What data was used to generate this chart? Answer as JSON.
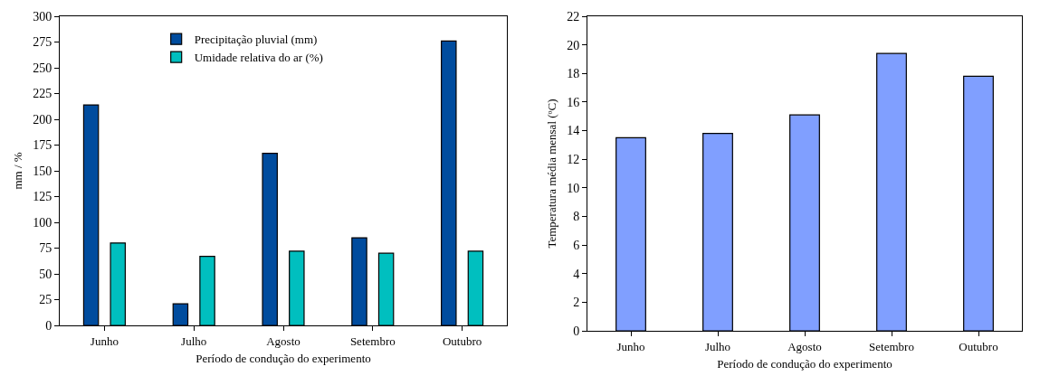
{
  "chart_data": [
    {
      "type": "bar",
      "categories": [
        "Junho",
        "Julho",
        "Agosto",
        "Setembro",
        "Outubro"
      ],
      "xlabel": "Período de condução do experimento",
      "ylabel": "mm / %",
      "ylim": [
        0,
        300
      ],
      "yticks": [
        0,
        25,
        50,
        75,
        100,
        125,
        150,
        175,
        200,
        225,
        250,
        275,
        300
      ],
      "grid": false,
      "legend": "top",
      "series": [
        {
          "name": "Precipitação pluvial (mm)",
          "color": "#004c9e",
          "values": [
            214,
            21,
            167,
            85,
            276
          ]
        },
        {
          "name": "Umidade relativa do ar (%)",
          "color": "#00bfbf",
          "values": [
            80,
            67,
            72,
            70,
            72
          ]
        }
      ]
    },
    {
      "type": "bar",
      "categories": [
        "Junho",
        "Julho",
        "Agosto",
        "Setembro",
        "Outubro"
      ],
      "xlabel": "Período de condução do experimento",
      "ylabel": "Temperatura média mensal (ºC)",
      "ylim": [
        0,
        22
      ],
      "yticks": [
        0,
        2,
        4,
        6,
        8,
        10,
        12,
        14,
        16,
        18,
        20,
        22
      ],
      "grid": false,
      "legend": false,
      "series": [
        {
          "color": "#809fff",
          "values": [
            13.5,
            13.8,
            15.1,
            19.4,
            17.8
          ]
        }
      ]
    }
  ]
}
